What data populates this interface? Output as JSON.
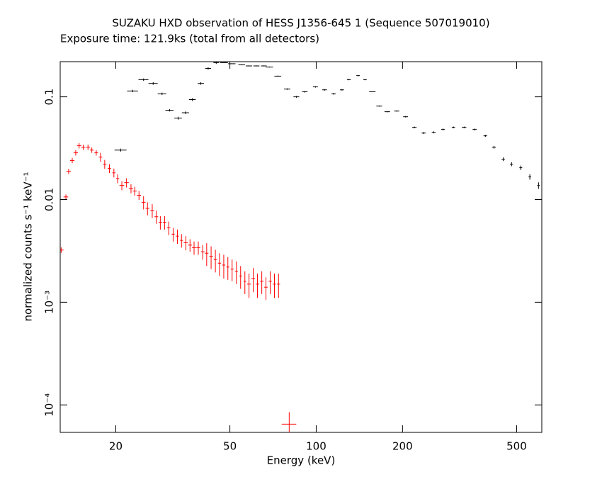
{
  "chart_data": {
    "type": "errorbar",
    "title": "SUZAKU HXD observation of HESS J1356-645 1 (Sequence 507019010)",
    "subtitle": "Exposure time: 121.9ks (total from all detectors)",
    "x_label": "Energy (keV)",
    "y_label": "normalized counts s⁻¹ keV⁻¹",
    "xscale": "log",
    "yscale": "log",
    "xlim": [
      12.8,
      612
    ],
    "ylim": [
      5.4e-05,
      0.22
    ],
    "xticks": [
      20,
      50,
      100,
      200,
      500
    ],
    "yticks": [
      {
        "value": 0.0001,
        "label": "10⁻⁴"
      },
      {
        "value": 0.001,
        "label": "10⁻³"
      },
      0.01,
      0.1
    ],
    "series": [
      {
        "color": "#000000",
        "x": [
          20.8,
          22.9,
          25,
          27,
          29,
          30.8,
          33,
          35,
          37,
          39.6,
          42,
          44.8,
          47.7,
          50.8,
          55,
          58.3,
          61.9,
          65.7,
          68.7,
          73.5,
          79.2,
          85.3,
          91.3,
          99.4,
          107,
          115,
          123,
          130,
          140,
          148,
          157,
          166,
          177,
          191,
          205,
          220,
          237,
          257,
          277,
          301,
          328,
          357,
          389,
          417,
          449,
          480,
          517,
          556,
          596
        ],
        "values": [
          0.0303,
          0.114,
          0.147,
          0.135,
          0.107,
          0.074,
          0.062,
          0.07,
          0.094,
          0.135,
          0.189,
          0.215,
          0.215,
          0.21,
          0.205,
          0.2,
          0.2,
          0.2,
          0.195,
          0.159,
          0.119,
          0.1,
          0.112,
          0.125,
          0.117,
          0.107,
          0.117,
          0.147,
          0.161,
          0.147,
          0.112,
          0.0813,
          0.0716,
          0.0727,
          0.064,
          0.0504,
          0.0444,
          0.0451,
          0.0481,
          0.0504,
          0.0504,
          0.0481,
          0.0417,
          0.0323,
          0.0247,
          0.0221,
          0.0204,
          0.0166,
          0.0137
        ],
        "xerr": [
          1,
          1,
          1,
          1,
          1,
          1,
          1,
          1,
          1,
          1,
          1,
          1,
          1.5,
          1.5,
          1.5,
          1.5,
          1.5,
          1.5,
          2,
          2,
          2,
          2,
          2,
          2,
          2,
          2,
          2,
          2,
          2,
          2,
          4,
          4,
          4,
          4,
          4,
          4,
          4,
          4,
          4,
          4,
          6,
          6,
          6,
          6,
          6,
          6,
          6,
          6,
          6
        ],
        "yerr": [
          0.001,
          0.003,
          0.004,
          0.004,
          0.003,
          0.002,
          0.002,
          0.002,
          0.003,
          0.004,
          0.005,
          0.006,
          0.002,
          0.002,
          0.002,
          0.002,
          0.002,
          0.002,
          0.002,
          0.002,
          0.002,
          0.002,
          0.002,
          0.002,
          0.002,
          0.002,
          0.002,
          0.002,
          0.002,
          0.002,
          0.001,
          0.001,
          0.001,
          0.001,
          0.001,
          0.001,
          0.001,
          0.001,
          0.001,
          0.001,
          0.001,
          0.001,
          0.001,
          0.001,
          0.001,
          0.001,
          0.001,
          0.001,
          0.001
        ]
      },
      {
        "color": "#ff0000",
        "x": [
          12.9,
          13.4,
          13.7,
          14.1,
          14.5,
          14.9,
          15.4,
          16.0,
          16.5,
          17.1,
          17.7,
          18.3,
          19.0,
          19.7,
          20.3,
          21.0,
          21.8,
          22.6,
          23.3,
          24.1,
          25.0,
          25.8,
          26.8,
          27.7,
          28.6,
          29.6,
          30.6,
          31.7,
          32.8,
          33.9,
          35.1,
          36.3,
          37.5,
          38.8,
          40.2,
          41.5,
          43.0,
          44.5,
          46.0,
          47.6,
          49.2,
          50.9,
          52.7,
          54.5,
          56.4,
          58.3,
          60.3,
          62.4,
          64.6,
          66.8,
          69.1,
          71.5,
          73.9,
          80.5
        ],
        "values": [
          0.00322,
          0.0106,
          0.0188,
          0.024,
          0.0285,
          0.0334,
          0.0323,
          0.0323,
          0.0303,
          0.0285,
          0.0259,
          0.0221,
          0.0201,
          0.0182,
          0.016,
          0.0137,
          0.0146,
          0.0128,
          0.0121,
          0.011,
          0.0094,
          0.0082,
          0.0078,
          0.0068,
          0.006,
          0.006,
          0.0053,
          0.0046,
          0.0044,
          0.004,
          0.0038,
          0.0036,
          0.0034,
          0.0034,
          0.0031,
          0.003,
          0.0028,
          0.0026,
          0.0024,
          0.0023,
          0.0022,
          0.0021,
          0.002,
          0.0018,
          0.0016,
          0.0015,
          0.0017,
          0.0015,
          0.0016,
          0.0014,
          0.0016,
          0.0015,
          0.0015,
          6.5e-05
        ],
        "xerr": [
          0.25,
          0.25,
          0.25,
          0.25,
          0.25,
          0.25,
          0.25,
          0.25,
          0.25,
          0.25,
          0.25,
          0.25,
          0.25,
          0.25,
          0.25,
          0.4,
          0.4,
          0.4,
          0.4,
          0.4,
          0.4,
          0.4,
          0.4,
          0.4,
          0.4,
          0.4,
          0.4,
          0.4,
          0.4,
          0.4,
          0.6,
          0.6,
          0.6,
          0.6,
          0.6,
          0.6,
          0.6,
          0.6,
          0.6,
          0.6,
          0.6,
          0.6,
          0.6,
          0.6,
          0.6,
          0.9,
          0.9,
          0.9,
          0.9,
          0.9,
          0.9,
          0.9,
          0.9,
          4.7
        ],
        "yerr": [
          0.0002,
          0.0006,
          0.0011,
          0.0014,
          0.0017,
          0.002,
          0.0019,
          0.0019,
          0.0018,
          0.0017,
          0.0026,
          0.0022,
          0.002,
          0.0018,
          0.0016,
          0.0014,
          0.0015,
          0.0013,
          0.0012,
          0.0011,
          0.0014,
          0.0012,
          0.0012,
          0.001,
          0.0009,
          0.0009,
          0.0008,
          0.0007,
          0.0007,
          0.0006,
          0.0006,
          0.0005,
          0.0005,
          0.0005,
          0.0005,
          0.00075,
          0.0007,
          0.00065,
          0.0006,
          0.0006,
          0.00055,
          0.0005,
          0.0005,
          0.00045,
          0.0004,
          0.0004,
          0.00045,
          0.0004,
          0.0004,
          0.00035,
          0.0004,
          0.0004,
          0.0004,
          2e-05
        ]
      }
    ]
  }
}
